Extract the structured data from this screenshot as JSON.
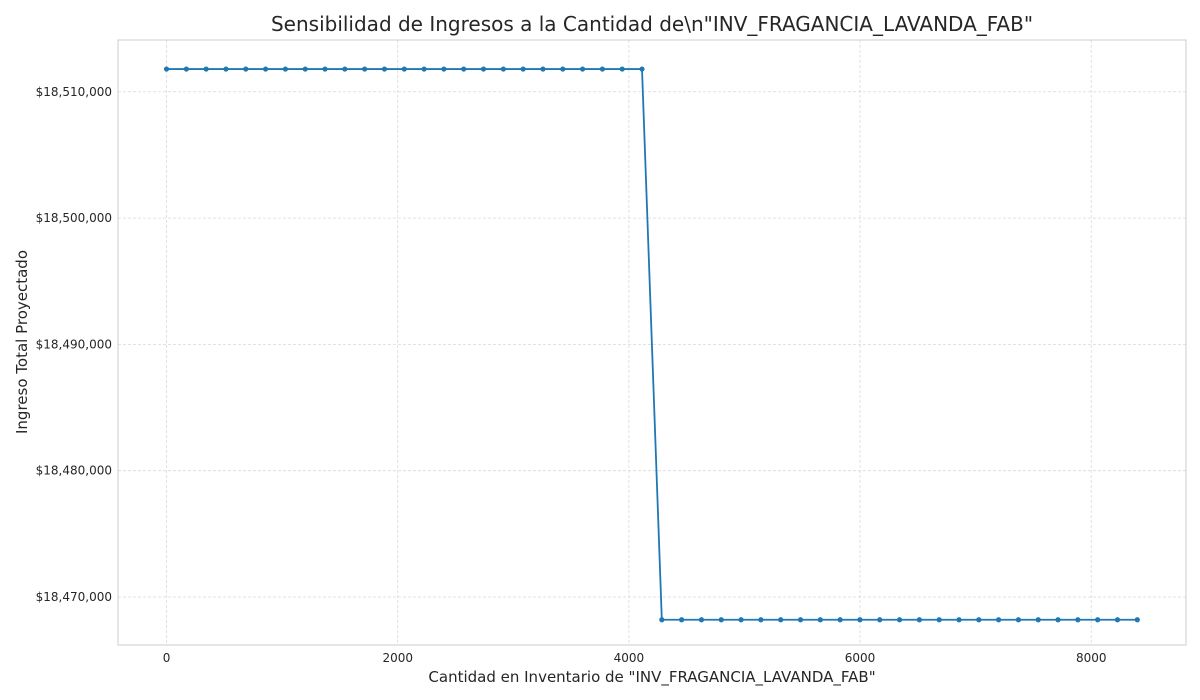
{
  "chart_data": {
    "type": "line",
    "title": "Sensibilidad de Ingresos a la Cantidad de\\n\"INV_FRAGANCIA_LAVANDA_FAB\"",
    "xlabel": "Cantidad en Inventario de \"INV_FRAGANCIA_LAVANDA_FAB\"",
    "ylabel": "Ingreso Total Proyectado",
    "xlim": [
      -420,
      8820
    ],
    "ylim": [
      18466200,
      18514100
    ],
    "x_ticks": [
      0,
      2000,
      4000,
      6000,
      8000
    ],
    "x_tick_labels": [
      "0",
      "2000",
      "4000",
      "6000",
      "8000"
    ],
    "y_ticks": [
      18470000,
      18480000,
      18490000,
      18500000,
      18510000
    ],
    "y_tick_labels": [
      "$18,470,000",
      "$18,480,000",
      "$18,490,000",
      "$18,500,000",
      "$18,510,000"
    ],
    "grid": true,
    "series": [
      {
        "color": "#1f77b4",
        "marker": "circle",
        "x_start": 0,
        "x_step": 171.4,
        "points_count": 50,
        "values": [
          18511800,
          18511800,
          18511800,
          18511800,
          18511800,
          18511800,
          18511800,
          18511800,
          18511800,
          18511800,
          18511800,
          18511800,
          18511800,
          18511800,
          18511800,
          18511800,
          18511800,
          18511800,
          18511800,
          18511800,
          18511800,
          18511800,
          18511800,
          18511800,
          18511800,
          18468200,
          18468200,
          18468200,
          18468200,
          18468200,
          18468200,
          18468200,
          18468200,
          18468200,
          18468200,
          18468200,
          18468200,
          18468200,
          18468200,
          18468200,
          18468200,
          18468200,
          18468200,
          18468200,
          18468200,
          18468200,
          18468200,
          18468200,
          18468200,
          18468200
        ]
      }
    ]
  }
}
